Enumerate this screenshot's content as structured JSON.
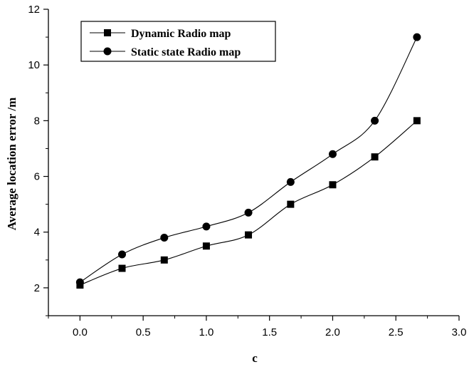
{
  "chart_data": {
    "type": "line",
    "xlabel": "c",
    "ylabel": "Average location error /m",
    "xlim": [
      -0.25,
      3.0
    ],
    "ylim": [
      1,
      12
    ],
    "x_ticks": [
      "0.0",
      "0.5",
      "1.0",
      "1.5",
      "2.0",
      "2.5",
      "3.0"
    ],
    "y_ticks": [
      "2",
      "4",
      "6",
      "8",
      "10",
      "12"
    ],
    "legend_position": "top-left",
    "grid": false,
    "x": [
      0.0,
      0.333,
      0.667,
      1.0,
      1.333,
      1.667,
      2.0,
      2.333,
      2.667
    ],
    "series": [
      {
        "name": "Dynamic Radio map",
        "marker": "square",
        "color": "#000000",
        "values": [
          2.1,
          2.7,
          3.0,
          3.5,
          3.9,
          5.0,
          5.7,
          6.7,
          8.0
        ]
      },
      {
        "name": "Static state Radio map",
        "marker": "circle",
        "color": "#000000",
        "values": [
          2.2,
          3.2,
          3.8,
          4.2,
          4.7,
          5.8,
          6.8,
          8.0,
          11.0
        ]
      }
    ]
  }
}
